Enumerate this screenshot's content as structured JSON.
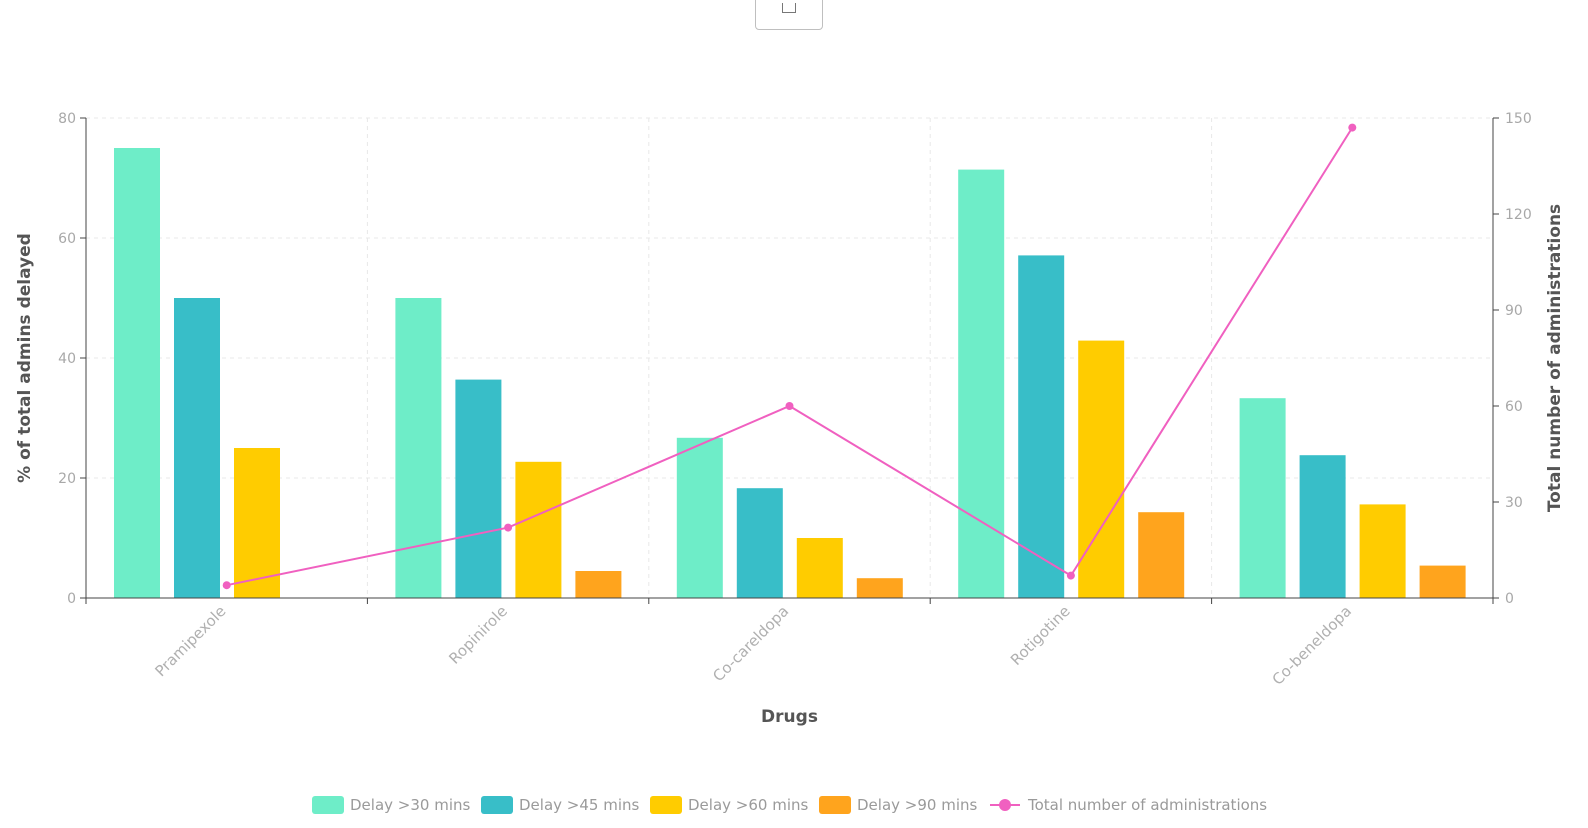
{
  "toolbar": {
    "export_icon": "export-icon"
  },
  "colors": {
    "delay30": "#6eedc8",
    "delay45": "#38bec8",
    "delay60": "#ffcc00",
    "delay90": "#ffa41d",
    "total": "#f060c0",
    "grid": "#e8e8e8",
    "axis": "#444444"
  },
  "chart_data": {
    "type": "bar",
    "xlabel": "Drugs",
    "ylabel": "% of total admins delayed",
    "y2label": "Total number of administrations",
    "ylim": [
      0,
      80
    ],
    "y2lim": [
      0,
      150
    ],
    "yticks": [
      0,
      20,
      40,
      60,
      80
    ],
    "y2ticks": [
      0,
      30,
      60,
      90,
      120,
      150
    ],
    "grid": true,
    "legend_position": "bottom",
    "categories": [
      "Pramipexole",
      "Ropinirole",
      "Co-careldopa",
      "Rotigotine",
      "Co-beneldopa"
    ],
    "series": [
      {
        "name": "Delay >30 mins",
        "type": "bar",
        "axis": "left",
        "values": [
          75,
          50,
          26.7,
          71.4,
          33.3
        ]
      },
      {
        "name": "Delay >45 mins",
        "type": "bar",
        "axis": "left",
        "values": [
          50,
          36.4,
          18.3,
          57.1,
          23.8
        ]
      },
      {
        "name": "Delay >60 mins",
        "type": "bar",
        "axis": "left",
        "values": [
          25,
          22.7,
          10,
          42.9,
          15.6
        ]
      },
      {
        "name": "Delay >90 mins",
        "type": "bar",
        "axis": "left",
        "values": [
          0,
          4.5,
          3.3,
          14.3,
          5.4
        ]
      },
      {
        "name": "Total number of administrations",
        "type": "line",
        "axis": "right",
        "values": [
          4,
          22,
          60,
          7,
          147
        ]
      }
    ]
  }
}
